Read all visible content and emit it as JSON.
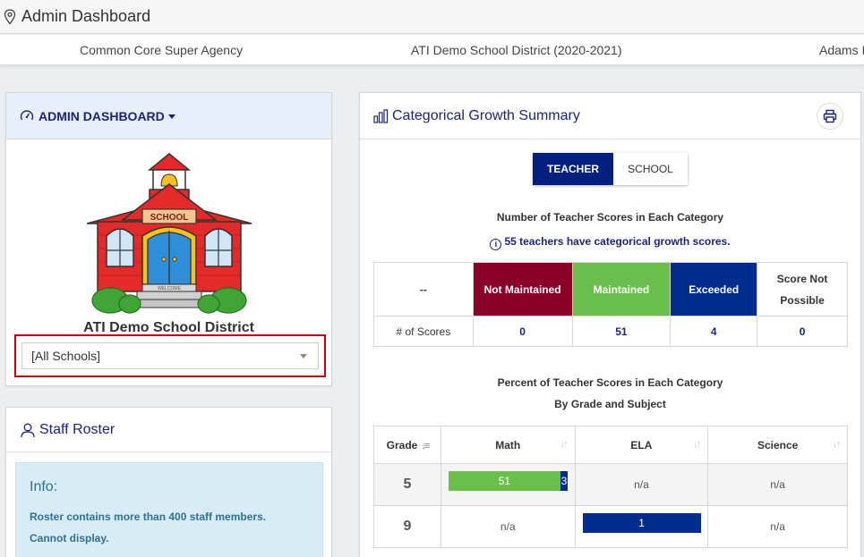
{
  "header": {
    "title": "Admin Dashboard"
  },
  "breadcrumb": {
    "agency": "Common Core Super Agency",
    "district": "ATI Demo School District (2020-2021)",
    "school": "Adams I"
  },
  "admin_panel": {
    "menu_label": "ADMIN DASHBOARD",
    "district_name": "ATI Demo School District",
    "school_select_value": "[All Schools]",
    "image_sign_text": "SCHOOL",
    "image_mat_text": "WELCOME"
  },
  "staff_roster": {
    "title": "Staff Roster",
    "info_title": "Info:",
    "info_line1": "Roster contains more than 400 staff members.",
    "info_line2": "Cannot display."
  },
  "growth": {
    "title": "Categorical Growth Summary",
    "toggle": {
      "teacher": "TEACHER",
      "school": "SCHOOL",
      "selected": "TEACHER"
    },
    "count_heading": "Number of Teacher Scores in Each Category",
    "teachers_note": "55 teachers have categorical growth scores.",
    "category_table": {
      "corner": "--",
      "headers": [
        "Not Maintained",
        "Maintained",
        "Exceeded",
        "Score Not Possible"
      ],
      "row_label": "# of Scores",
      "values": [
        "0",
        "51",
        "4",
        "0"
      ]
    },
    "percent_heading_line1": "Percent of Teacher Scores in Each Category",
    "percent_heading_line2": "By Grade and Subject",
    "grade_table": {
      "headers": [
        "Grade",
        "Math",
        "ELA",
        "Science"
      ],
      "rows": [
        {
          "grade": "5",
          "math_maintained": "51",
          "math_exceeded": "3",
          "ela": "n/a",
          "science": "n/a"
        },
        {
          "grade": "9",
          "math": "n/a",
          "ela_exceeded": "1",
          "science": "n/a"
        }
      ]
    },
    "colors": {
      "not_maintained": "#8b0026",
      "maintained": "#6abf4b",
      "exceeded": "#002d8f",
      "toggle_active": "#001f7e"
    }
  }
}
